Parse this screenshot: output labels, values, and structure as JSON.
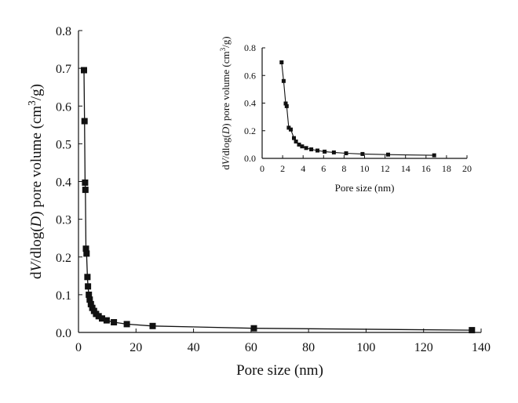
{
  "chart_data": [
    {
      "type": "scatter",
      "panel": "main",
      "xlabel": "Pore size (nm)",
      "ylabel": {
        "prefix": "d",
        "v": "V",
        "mid": "/dlog(",
        "d": "D",
        "suffix": ") pore volume (cm",
        "sup": "3",
        "end": "/g)"
      },
      "xlim": [
        0,
        140
      ],
      "ylim": [
        0,
        0.8
      ],
      "xticks": [
        "0",
        "20",
        "40",
        "60",
        "80",
        "100",
        "120",
        "140"
      ],
      "yticks": [
        "0.0",
        "0.1",
        "0.2",
        "0.3",
        "0.4",
        "0.5",
        "0.6",
        "0.7",
        "0.8"
      ],
      "marker": "square",
      "line": true,
      "color": "#111111",
      "series": [
        {
          "points": [
            [
              1.9,
              0.695
            ],
            [
              2.1,
              0.56
            ],
            [
              2.3,
              0.397
            ],
            [
              2.4,
              0.378
            ],
            [
              2.6,
              0.222
            ],
            [
              2.8,
              0.209
            ],
            [
              3.1,
              0.147
            ],
            [
              3.3,
              0.122
            ],
            [
              3.6,
              0.1
            ],
            [
              3.9,
              0.087
            ],
            [
              4.3,
              0.075
            ],
            [
              4.8,
              0.065
            ],
            [
              5.4,
              0.057
            ],
            [
              6.1,
              0.049
            ],
            [
              7.0,
              0.043
            ],
            [
              8.2,
              0.037
            ],
            [
              9.8,
              0.032
            ],
            [
              12.3,
              0.027
            ],
            [
              16.8,
              0.022
            ],
            [
              25.8,
              0.017
            ],
            [
              61.0,
              0.011
            ],
            [
              136.8,
              0.006
            ]
          ]
        }
      ]
    },
    {
      "type": "scatter",
      "panel": "inset",
      "xlabel": "Pore size (nm)",
      "ylabel": {
        "prefix": "d",
        "v": "V",
        "mid": "/dlog(",
        "d": "D",
        "suffix": ") pore volume (cm",
        "sup": "3",
        "end": "/g)"
      },
      "xlim": [
        0,
        20
      ],
      "ylim": [
        0,
        0.8
      ],
      "xticks": [
        "0",
        "2",
        "4",
        "6",
        "8",
        "10",
        "12",
        "14",
        "16",
        "18",
        "20"
      ],
      "yticks": [
        "0.0",
        "0.2",
        "0.4",
        "0.6",
        "0.8"
      ],
      "marker": "square",
      "line": true,
      "color": "#111111",
      "series": [
        {
          "points": [
            [
              1.9,
              0.695
            ],
            [
              2.1,
              0.56
            ],
            [
              2.3,
              0.397
            ],
            [
              2.4,
              0.378
            ],
            [
              2.6,
              0.222
            ],
            [
              2.8,
              0.209
            ],
            [
              3.1,
              0.147
            ],
            [
              3.3,
              0.122
            ],
            [
              3.6,
              0.1
            ],
            [
              3.9,
              0.087
            ],
            [
              4.3,
              0.075
            ],
            [
              4.8,
              0.065
            ],
            [
              5.4,
              0.057
            ],
            [
              6.1,
              0.049
            ],
            [
              7.0,
              0.043
            ],
            [
              8.2,
              0.037
            ],
            [
              9.8,
              0.032
            ],
            [
              12.3,
              0.027
            ],
            [
              16.8,
              0.022
            ]
          ]
        }
      ]
    }
  ]
}
